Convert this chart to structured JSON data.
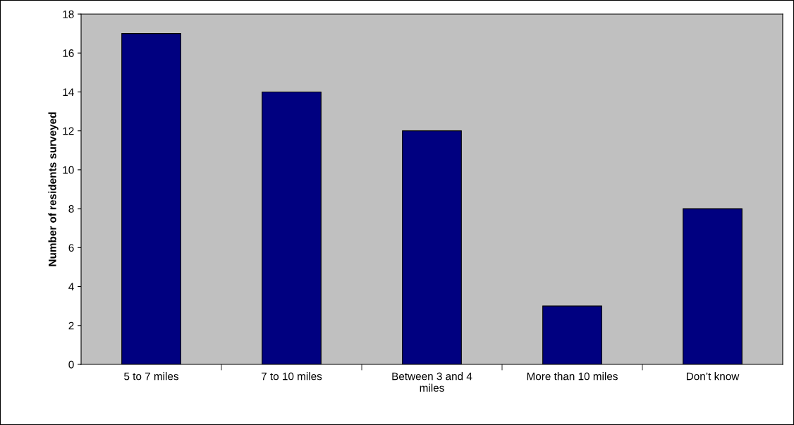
{
  "chart_data": {
    "type": "bar",
    "ylabel": "Number of residents surveyed",
    "categories": [
      "5 to 7 miles",
      "7 to 10 miles",
      "Between 3 and 4 miles",
      "More than 10 miles",
      "Don’t know"
    ],
    "values": [
      17,
      14,
      12,
      3,
      8
    ],
    "color": "#000080",
    "ylim": [
      0,
      18
    ],
    "yticks": [
      0,
      2,
      4,
      6,
      8,
      10,
      12,
      14,
      16,
      18
    ],
    "grid": false,
    "legend": false
  }
}
